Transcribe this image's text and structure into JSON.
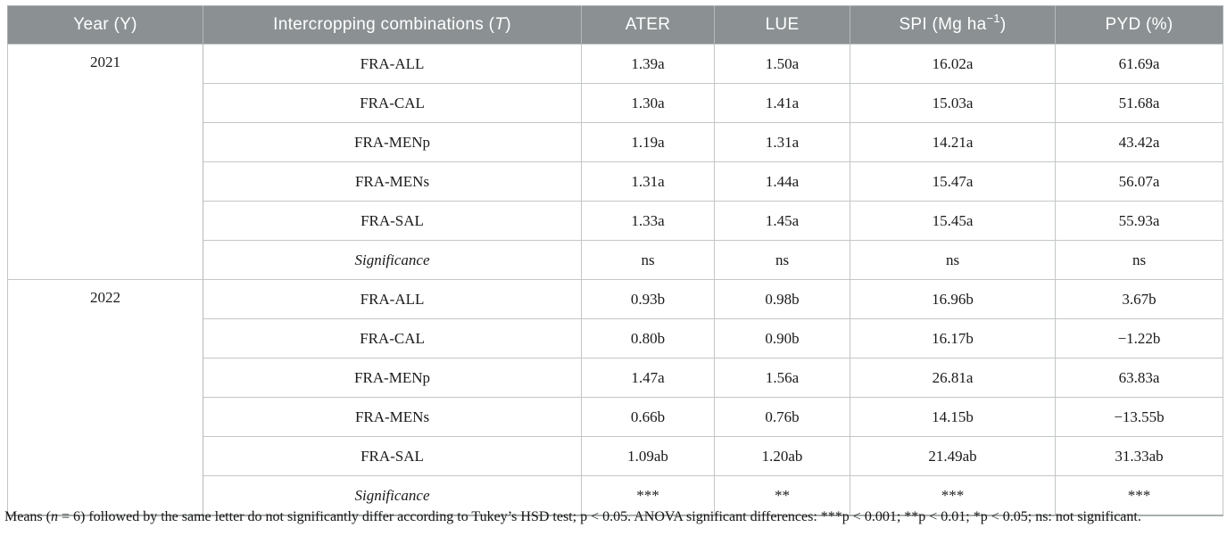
{
  "table": {
    "header": {
      "year": "Year (Y)",
      "comb_prefix": "Intercropping combinations (",
      "comb_italic": "T",
      "comb_suffix": ")",
      "ater": "ATER",
      "lue": "LUE",
      "spi_prefix": "SPI (Mg ha",
      "spi_sup": "−1",
      "spi_suffix": ")",
      "pyd": "PYD (%)"
    },
    "header_bg_color": "#8b9193",
    "header_text_color": "#ffffff",
    "groups": [
      {
        "year": "2021",
        "rows": [
          {
            "combination": "FRA-ALL",
            "ater": "1.39a",
            "lue": "1.50a",
            "spi": "16.02a",
            "pyd": "61.69a"
          },
          {
            "combination": "FRA-CAL",
            "ater": "1.30a",
            "lue": "1.41a",
            "spi": "15.03a",
            "pyd": "51.68a"
          },
          {
            "combination": "FRA-MENp",
            "ater": "1.19a",
            "lue": "1.31a",
            "spi": "14.21a",
            "pyd": "43.42a"
          },
          {
            "combination": "FRA-MENs",
            "ater": "1.31a",
            "lue": "1.44a",
            "spi": "15.47a",
            "pyd": "56.07a"
          },
          {
            "combination": "FRA-SAL",
            "ater": "1.33a",
            "lue": "1.45a",
            "spi": "15.45a",
            "pyd": "55.93a"
          },
          {
            "combination": "Significance",
            "ater": "ns",
            "lue": "ns",
            "spi": "ns",
            "pyd": "ns"
          }
        ]
      },
      {
        "year": "2022",
        "rows": [
          {
            "combination": "FRA-ALL",
            "ater": "0.93b",
            "lue": "0.98b",
            "spi": "16.96b",
            "pyd": "3.67b"
          },
          {
            "combination": "FRA-CAL",
            "ater": "0.80b",
            "lue": "0.90b",
            "spi": "16.17b",
            "pyd": "−1.22b"
          },
          {
            "combination": "FRA-MENp",
            "ater": "1.47a",
            "lue": "1.56a",
            "spi": "26.81a",
            "pyd": "63.83a"
          },
          {
            "combination": "FRA-MENs",
            "ater": "0.66b",
            "lue": "0.76b",
            "spi": "14.15b",
            "pyd": "−13.55b"
          },
          {
            "combination": "FRA-SAL",
            "ater": "1.09ab",
            "lue": "1.20ab",
            "spi": "21.49ab",
            "pyd": "31.33ab"
          },
          {
            "combination": "Significance",
            "ater": "***",
            "lue": "**",
            "spi": "***",
            "pyd": "***"
          }
        ]
      }
    ]
  },
  "footnote": {
    "part1": "Means (",
    "n_italic": "n",
    "part2": " = 6) followed by the same letter do not significantly differ according to Tukey’s HSD test; p < 0.05. ANOVA significant differences: ***p < 0.001; **p < 0.01; *p < 0.05; ns: not significant."
  }
}
